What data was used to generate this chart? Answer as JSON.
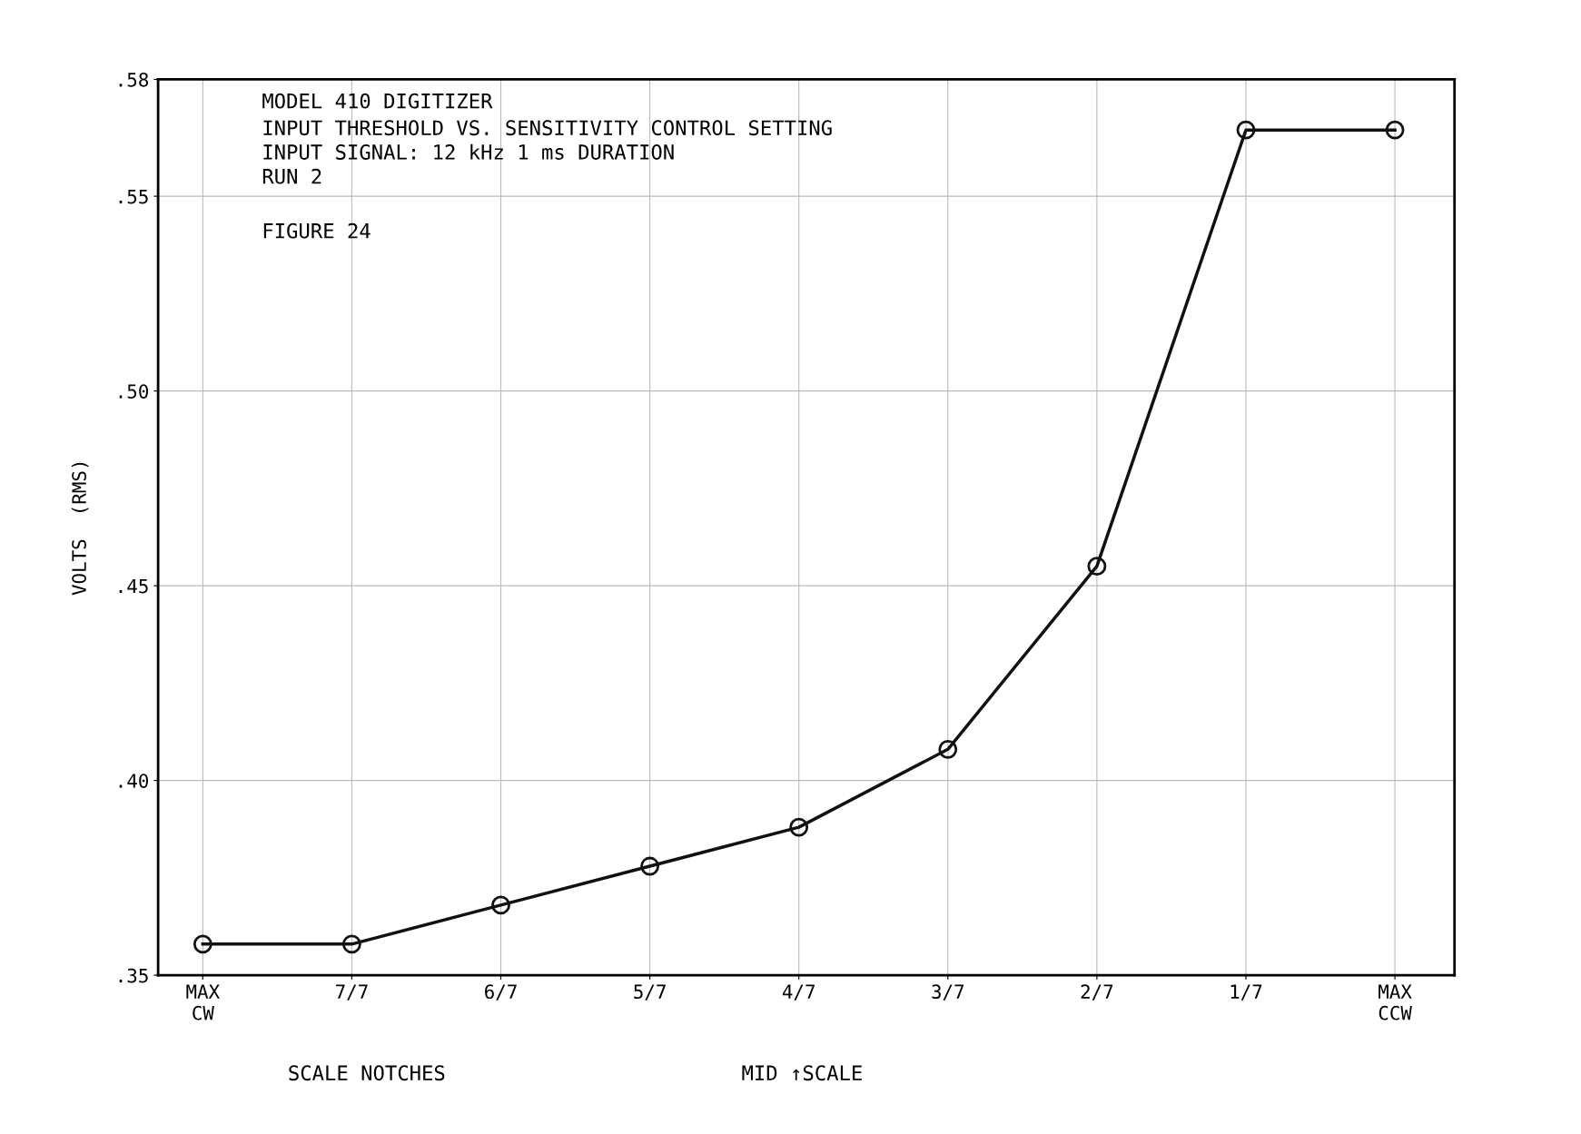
{
  "chart_data": {
    "type": "line",
    "title": "MODEL 410 DIGITIZER",
    "subtitle": "INPUT THRESHOLD VS. SENSITIVITY CONTROL SETTING\nINPUT SIGNAL: 12 kHz 1 ms DURATION\nRUN 2",
    "ylabel": "VOLTS  (RMS)",
    "categories": [
      "MAX\nCW",
      "7/7",
      "6/7",
      "5/7",
      "4/7",
      "3/7",
      "2/7",
      "1/7",
      "MAX\nCCW"
    ],
    "series": [
      {
        "color": "#111111",
        "values": [
          0.358,
          0.358,
          0.368,
          0.378,
          0.388,
          0.408,
          0.455,
          0.567,
          0.567
        ]
      }
    ],
    "ylim": [
      0.35,
      0.58
    ],
    "yticks": [
      {
        "value": 0.35,
        "label": ".35"
      },
      {
        "value": 0.4,
        "label": ".40"
      },
      {
        "value": 0.45,
        "label": ".45"
      },
      {
        "value": 0.5,
        "label": ".50"
      },
      {
        "value": 0.55,
        "label": ".55"
      },
      {
        "value": 0.58,
        "label": ".58"
      }
    ],
    "annotations": [
      "FIGURE 24",
      "SCALE NOTCHES",
      "MID ↑SCALE"
    ],
    "grid": true,
    "marker": "circle",
    "line_style": "solid"
  }
}
